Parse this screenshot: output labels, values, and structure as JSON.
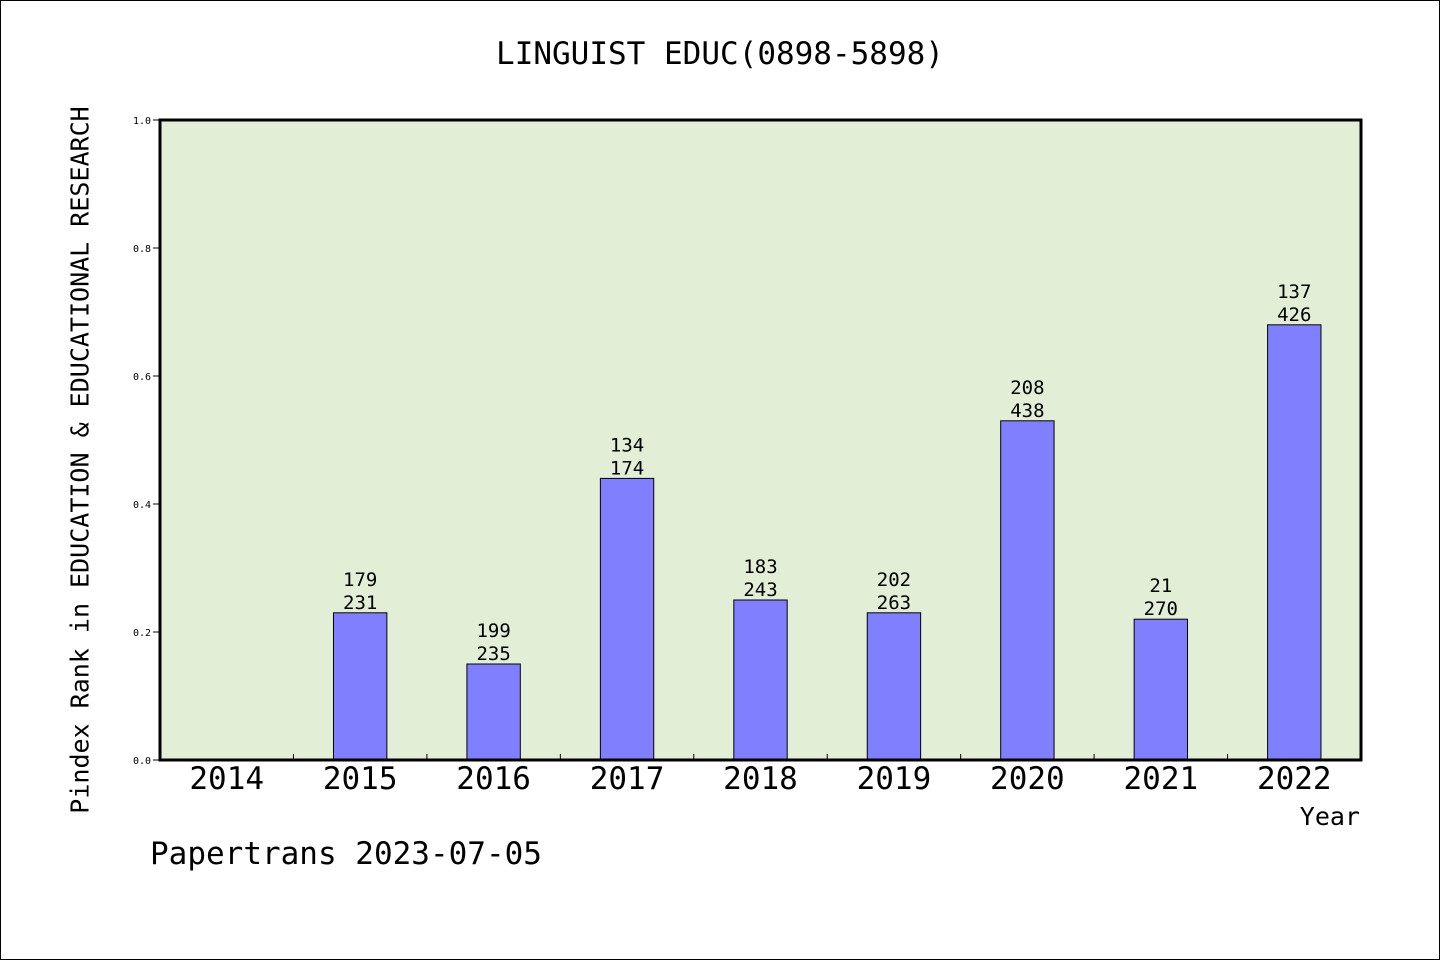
{
  "chart_data": {
    "type": "bar",
    "title": "LINGUIST EDUC(0898-5898)",
    "ylabel": "Pindex Rank in EDUCATION & EDUCATIONAL RESEARCH",
    "xlabel": "Year",
    "ylim": [
      0.0,
      1.0
    ],
    "yticks": [
      "0.0",
      "0.2",
      "0.4",
      "0.6",
      "0.8",
      "1.0"
    ],
    "categories": [
      "2014",
      "2015",
      "2016",
      "2017",
      "2018",
      "2019",
      "2020",
      "2021",
      "2022"
    ],
    "values": [
      null,
      0.23,
      0.15,
      0.44,
      0.25,
      0.23,
      0.53,
      0.22,
      0.68
    ],
    "label_top": [
      "",
      "179",
      "199",
      "134",
      "183",
      "202",
      "208",
      "21",
      "137"
    ],
    "label_bottom": [
      "",
      "231",
      "235",
      "174",
      "243",
      "263",
      "438",
      "270",
      "426"
    ],
    "grid": false,
    "colors": {
      "plot_background": "#e2efd6",
      "bar_fill": "#8080ff",
      "bar_stroke": "#000000"
    }
  },
  "footer": {
    "credit": "Papertrans 2023-07-05"
  }
}
